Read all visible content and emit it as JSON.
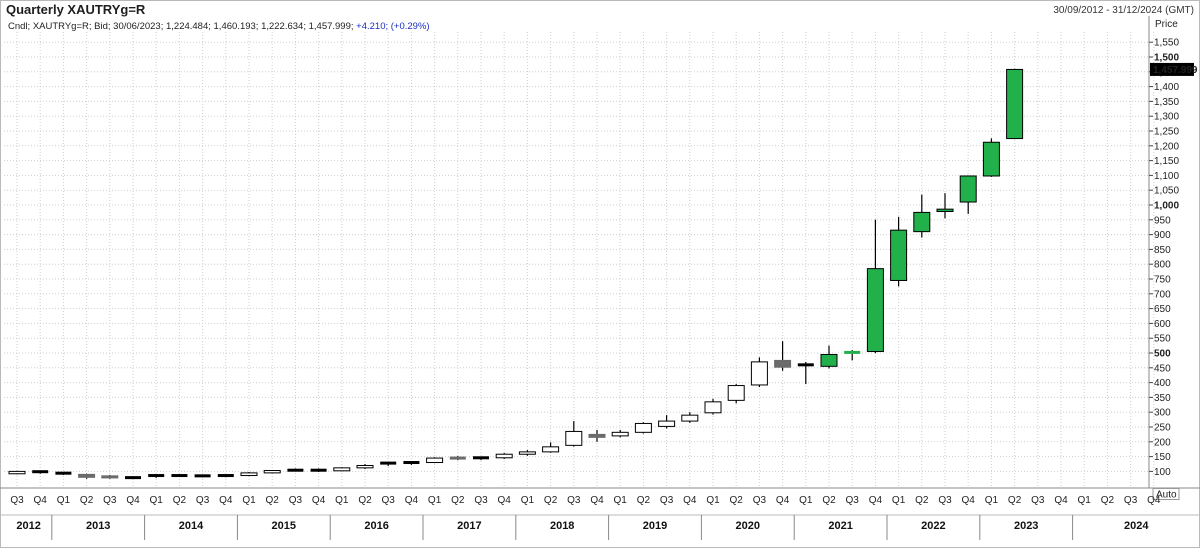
{
  "header": {
    "title": "Quarterly XAUTRYg=R",
    "date_range": "30/09/2012 - 31/12/2024 (GMT)",
    "info_prefix": "Cndl; XAUTRYg=R; Bid; 30/06/2023; 1,224.484; 1,460.193; 1,222.634; 1,457.999;",
    "info_change": "+4.210; (+0.29%)"
  },
  "axis": {
    "price_label": "Price",
    "scale_mode": "Auto",
    "last_price_badge": "1,457.999"
  },
  "colors": {
    "up_green": "#22b04a",
    "flat_gray": "#6b6b6b",
    "grid": "#cfcfcf",
    "badge_bg": "#000000"
  },
  "chart_data": {
    "type": "candlestick",
    "title": "Quarterly XAUTRYg=R",
    "ylabel": "Price",
    "ylim": [
      50,
      1550
    ],
    "yticks": [
      100,
      150,
      200,
      250,
      300,
      350,
      400,
      450,
      500,
      550,
      600,
      650,
      700,
      750,
      800,
      850,
      900,
      950,
      1000,
      1050,
      1100,
      1150,
      1200,
      1250,
      1300,
      1350,
      1400,
      1450,
      1500,
      1550
    ],
    "ytick_labels": [
      "100",
      "150",
      "200",
      "250",
      "300",
      "350",
      "400",
      "450",
      "500",
      "550",
      "600",
      "650",
      "700",
      "750",
      "800",
      "850",
      "900",
      "950",
      "1,000",
      "1,050",
      "1,100",
      "1,150",
      "1,200",
      "1,250",
      "1,300",
      "1,350",
      "1,400",
      "1,450",
      "1,500",
      "1,550"
    ],
    "bold_ticks": [
      500,
      1000,
      1500
    ],
    "quarters": [
      "Q3",
      "Q4",
      "Q1",
      "Q2",
      "Q3",
      "Q4",
      "Q1",
      "Q2",
      "Q3",
      "Q4",
      "Q1",
      "Q2",
      "Q3",
      "Q4",
      "Q1",
      "Q2",
      "Q3",
      "Q4",
      "Q1",
      "Q2",
      "Q3",
      "Q4",
      "Q1",
      "Q2",
      "Q3",
      "Q4",
      "Q1",
      "Q2",
      "Q3",
      "Q4",
      "Q1",
      "Q2",
      "Q3",
      "Q4",
      "Q1",
      "Q2",
      "Q3",
      "Q4",
      "Q1",
      "Q2",
      "Q3",
      "Q4",
      "Q1",
      "Q2",
      "Q3",
      "Q4",
      "Q1",
      "Q2",
      "Q3",
      "Q4"
    ],
    "years": [
      "2012",
      "2013",
      "2014",
      "2015",
      "2016",
      "2017",
      "2018",
      "2019",
      "2020",
      "2021",
      "2022",
      "2023",
      "2024"
    ],
    "candles": [
      {
        "o": 92,
        "h": 102,
        "l": 90,
        "c": 100,
        "s": "hollow"
      },
      {
        "o": 99,
        "h": 101,
        "l": 92,
        "c": 94,
        "s": "hollow"
      },
      {
        "o": 94,
        "h": 97,
        "l": 88,
        "c": 91,
        "s": "hollow"
      },
      {
        "o": 90,
        "h": 92,
        "l": 75,
        "c": 80,
        "s": "gray"
      },
      {
        "o": 85,
        "h": 88,
        "l": 75,
        "c": 78,
        "s": "gray"
      },
      {
        "o": 79,
        "h": 82,
        "l": 76,
        "c": 79,
        "s": "hollow"
      },
      {
        "o": 80,
        "h": 90,
        "l": 78,
        "c": 86,
        "s": "hollow"
      },
      {
        "o": 86,
        "h": 90,
        "l": 82,
        "c": 85,
        "s": "hollow"
      },
      {
        "o": 84,
        "h": 88,
        "l": 80,
        "c": 85,
        "s": "hollow"
      },
      {
        "o": 84,
        "h": 88,
        "l": 80,
        "c": 86,
        "s": "hollow"
      },
      {
        "o": 86,
        "h": 98,
        "l": 84,
        "c": 95,
        "s": "hollow"
      },
      {
        "o": 95,
        "h": 104,
        "l": 93,
        "c": 103,
        "s": "hollow"
      },
      {
        "o": 103,
        "h": 110,
        "l": 100,
        "c": 104,
        "s": "hollow"
      },
      {
        "o": 104,
        "h": 110,
        "l": 98,
        "c": 102,
        "s": "hollow"
      },
      {
        "o": 102,
        "h": 114,
        "l": 100,
        "c": 112,
        "s": "hollow"
      },
      {
        "o": 112,
        "h": 125,
        "l": 108,
        "c": 120,
        "s": "hollow"
      },
      {
        "o": 122,
        "h": 132,
        "l": 118,
        "c": 128,
        "s": "hollow"
      },
      {
        "o": 126,
        "h": 133,
        "l": 122,
        "c": 130,
        "s": "hollow"
      },
      {
        "o": 130,
        "h": 148,
        "l": 128,
        "c": 145,
        "s": "hollow"
      },
      {
        "o": 145,
        "h": 152,
        "l": 138,
        "c": 142,
        "s": "gray"
      },
      {
        "o": 142,
        "h": 150,
        "l": 138,
        "c": 146,
        "s": "hollow"
      },
      {
        "o": 146,
        "h": 162,
        "l": 142,
        "c": 158,
        "s": "hollow"
      },
      {
        "o": 158,
        "h": 172,
        "l": 153,
        "c": 166,
        "s": "hollow"
      },
      {
        "o": 166,
        "h": 198,
        "l": 163,
        "c": 183,
        "s": "hollow"
      },
      {
        "o": 188,
        "h": 270,
        "l": 184,
        "c": 235,
        "s": "hollow"
      },
      {
        "o": 225,
        "h": 240,
        "l": 200,
        "c": 215,
        "s": "gray"
      },
      {
        "o": 220,
        "h": 240,
        "l": 215,
        "c": 232,
        "s": "hollow"
      },
      {
        "o": 232,
        "h": 266,
        "l": 228,
        "c": 262,
        "s": "hollow"
      },
      {
        "o": 252,
        "h": 290,
        "l": 245,
        "c": 270,
        "s": "hollow"
      },
      {
        "o": 270,
        "h": 300,
        "l": 264,
        "c": 290,
        "s": "hollow"
      },
      {
        "o": 298,
        "h": 345,
        "l": 292,
        "c": 335,
        "s": "hollow"
      },
      {
        "o": 340,
        "h": 395,
        "l": 330,
        "c": 390,
        "s": "hollow"
      },
      {
        "o": 392,
        "h": 485,
        "l": 385,
        "c": 470,
        "s": "hollow"
      },
      {
        "o": 475,
        "h": 540,
        "l": 440,
        "c": 452,
        "s": "gray"
      },
      {
        "o": 460,
        "h": 470,
        "l": 395,
        "c": 455,
        "s": "hollow"
      },
      {
        "o": 455,
        "h": 525,
        "l": 448,
        "c": 495,
        "s": "green"
      },
      {
        "o": 497,
        "h": 510,
        "l": 475,
        "c": 502,
        "s": "green"
      },
      {
        "o": 505,
        "h": 950,
        "l": 500,
        "c": 785,
        "s": "green"
      },
      {
        "o": 745,
        "h": 960,
        "l": 725,
        "c": 915,
        "s": "green"
      },
      {
        "o": 910,
        "h": 1035,
        "l": 890,
        "c": 975,
        "s": "green"
      },
      {
        "o": 978,
        "h": 1040,
        "l": 955,
        "c": 986,
        "s": "green"
      },
      {
        "o": 1010,
        "h": 1100,
        "l": 970,
        "c": 1098,
        "s": "green"
      },
      {
        "o": 1098,
        "h": 1225,
        "l": 1095,
        "c": 1212,
        "s": "green"
      },
      {
        "o": 1224.484,
        "h": 1460.193,
        "l": 1222.634,
        "c": 1457.999,
        "s": "green"
      }
    ]
  }
}
